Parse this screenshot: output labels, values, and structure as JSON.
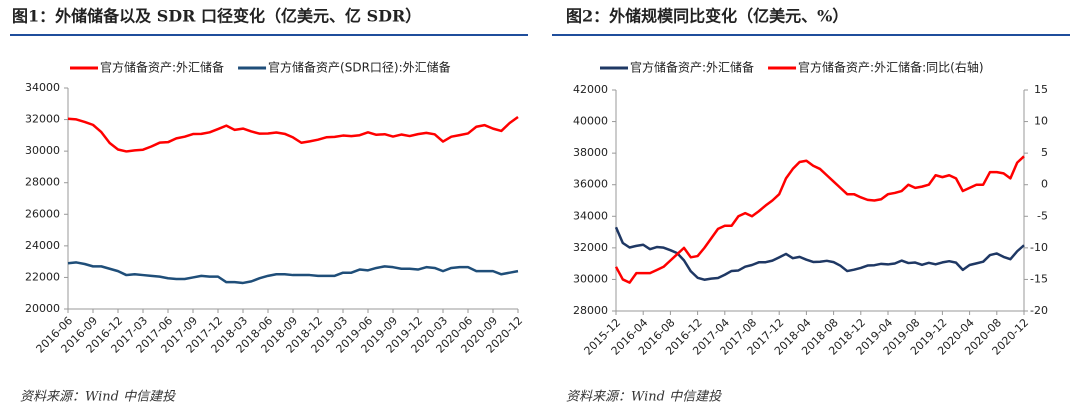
{
  "chart_data": [
    {
      "type": "line",
      "title": "图1：外储储备以及 SDR 口径变化（亿美元、亿 SDR）",
      "source": "资料来源：Wind 中信建投",
      "categories": [
        "2016-06",
        null,
        null,
        "2016-09",
        null,
        null,
        "2016-12",
        null,
        null,
        "2017-03",
        null,
        null,
        "2017-06",
        null,
        null,
        "2017-09",
        null,
        null,
        "2017-12",
        null,
        null,
        "2018-03",
        null,
        null,
        "2018-06",
        null,
        null,
        "2018-09",
        null,
        null,
        "2018-12",
        null,
        null,
        "2019-03",
        null,
        null,
        "2019-06",
        null,
        null,
        "2019-09",
        null,
        null,
        "2019-12",
        null,
        null,
        "2020-03",
        null,
        null,
        "2020-06",
        null,
        null,
        "2020-09",
        null,
        null,
        "2020-12"
      ],
      "series": [
        {
          "name": "官方储备资产:外汇储备",
          "color": "#ff0000",
          "values": [
            32052,
            32011,
            31852,
            31664,
            31206,
            30516,
            30105,
            29982,
            30051,
            30091,
            30295,
            30536,
            30568,
            30807,
            30915,
            31085,
            31092,
            31193,
            31399,
            31615,
            31345,
            31428,
            31249,
            31106,
            31121,
            31179,
            31097,
            30870,
            30531,
            30617,
            30727,
            30879,
            30902,
            30988,
            30950,
            31010,
            31192,
            31037,
            31072,
            30924,
            31052,
            30956,
            31079,
            31155,
            31067,
            30606,
            30915,
            31017,
            31123,
            31544,
            31646,
            31426,
            31280,
            31785,
            32165
          ]
        },
        {
          "name": "官方储备资产(SDR口径):外汇储备",
          "color": "#1f4e79",
          "values": [
            22900,
            22950,
            22850,
            22700,
            22700,
            22550,
            22400,
            22150,
            22200,
            22150,
            22100,
            22050,
            21950,
            21900,
            21900,
            22000,
            22100,
            22050,
            22050,
            21700,
            21700,
            21650,
            21750,
            21950,
            22100,
            22200,
            22200,
            22150,
            22150,
            22150,
            22100,
            22100,
            22100,
            22300,
            22300,
            22500,
            22450,
            22600,
            22700,
            22650,
            22550,
            22550,
            22500,
            22650,
            22600,
            22400,
            22600,
            22650,
            22650,
            22400,
            22400,
            22400,
            22200,
            22300,
            22400
          ]
        }
      ],
      "ylim": [
        20000,
        34000
      ],
      "yticks": [
        20000,
        22000,
        24000,
        26000,
        28000,
        30000,
        32000,
        34000
      ]
    },
    {
      "type": "line",
      "title": "图2：外储规模同比变化（亿美元、%）",
      "source": "资料来源：Wind 中信建投",
      "categories": [
        "2015-12",
        null,
        null,
        null,
        "2016-04",
        null,
        null,
        null,
        "2016-08",
        null,
        null,
        null,
        "2016-12",
        null,
        null,
        null,
        "2017-04",
        null,
        null,
        null,
        "2017-08",
        null,
        null,
        null,
        "2017-12",
        null,
        null,
        null,
        "2018-04",
        null,
        null,
        null,
        "2018-08",
        null,
        null,
        null,
        "2018-12",
        null,
        null,
        null,
        "2019-04",
        null,
        null,
        null,
        "2019-08",
        null,
        null,
        null,
        "2019-12",
        null,
        null,
        null,
        "2020-04",
        null,
        null,
        null,
        "2020-08",
        null,
        null,
        null,
        "2020-12"
      ],
      "series": [
        {
          "name": "官方储备资产:外汇储备",
          "color": "#1f3864",
          "values": [
            33304,
            32309,
            32023,
            32126,
            32197,
            31917,
            32052,
            32011,
            31852,
            31664,
            31206,
            30516,
            30105,
            29982,
            30051,
            30091,
            30295,
            30536,
            30568,
            30807,
            30915,
            31085,
            31092,
            31193,
            31399,
            31615,
            31345,
            31428,
            31249,
            31106,
            31121,
            31179,
            31097,
            30870,
            30531,
            30617,
            30727,
            30879,
            30902,
            30988,
            30950,
            31010,
            31192,
            31037,
            31072,
            30924,
            31052,
            30956,
            31079,
            31155,
            31067,
            30606,
            30915,
            31017,
            31123,
            31544,
            31646,
            31426,
            31280,
            31785,
            32165
          ]
        },
        {
          "name": "官方储备资产:外汇储备:同比(右轴)",
          "color": "#ff0000",
          "axis": "y2",
          "values": [
            -13,
            -15,
            -15.5,
            -14,
            -14,
            -14,
            -13.5,
            -13,
            -12,
            -11,
            -10,
            -11.5,
            -11.3,
            -10,
            -8.5,
            -7,
            -6.5,
            -6.5,
            -5,
            -4.5,
            -5,
            -4.2,
            -3.3,
            -2.5,
            -1.5,
            1,
            2.5,
            3.6,
            3.8,
            3,
            2.5,
            1.5,
            0.5,
            -0.5,
            -1.5,
            -1.5,
            -2,
            -2.4,
            -2.5,
            -2.3,
            -1.5,
            -1.3,
            -1,
            0,
            -0.5,
            -0.3,
            0,
            1.5,
            1.2,
            1.5,
            1,
            -1,
            -0.5,
            0,
            0,
            2,
            2,
            1.8,
            1,
            3.5,
            4.5
          ]
        }
      ],
      "ylim": [
        28000,
        42000
      ],
      "yticks": [
        28000,
        30000,
        32000,
        34000,
        36000,
        38000,
        40000,
        42000
      ],
      "y2lim": [
        -20,
        15
      ],
      "y2ticks": [
        -20,
        -15,
        -10,
        -5,
        0,
        5,
        10,
        15
      ]
    }
  ]
}
